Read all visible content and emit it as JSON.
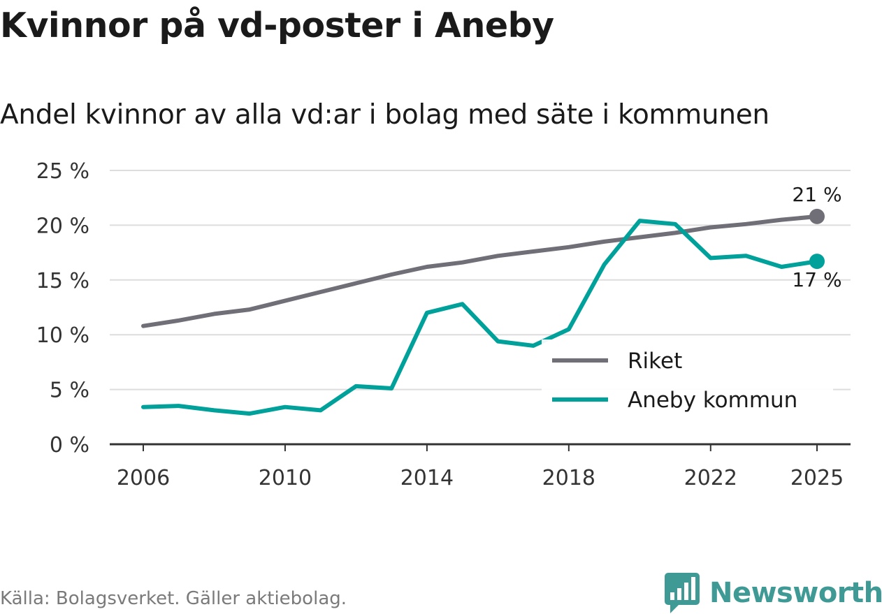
{
  "title": "Kvinnor på vd-poster i Aneby",
  "subtitle": "Andel kvinnor av alla vd:ar i bolag med säte i kommunen",
  "source": "Källa: Bolagsverket. Gäller aktiebolag.",
  "brand": "Newsworthy",
  "colors": {
    "riket": "#706f77",
    "aneby": "#00a19a",
    "grid": "#dddddd",
    "axis": "#333333",
    "brand": "#3f9a96"
  },
  "chart_data": {
    "type": "line",
    "x": [
      2006,
      2007,
      2008,
      2009,
      2010,
      2011,
      2012,
      2013,
      2014,
      2015,
      2016,
      2017,
      2018,
      2019,
      2020,
      2021,
      2022,
      2023,
      2024,
      2025
    ],
    "xticks": [
      2006,
      2010,
      2014,
      2018,
      2022,
      2025
    ],
    "xtick_labels": [
      "2006",
      "2010",
      "2014",
      "2018",
      "2022",
      "2025"
    ],
    "ylim": [
      0,
      25
    ],
    "yticks": [
      0,
      5,
      10,
      15,
      20,
      25
    ],
    "ytick_labels": [
      "0 %",
      "5 %",
      "10 %",
      "15 %",
      "20 %",
      "25 %"
    ],
    "series": [
      {
        "name": "Riket",
        "color": "#706f77",
        "values": [
          10.8,
          11.3,
          11.9,
          12.3,
          13.1,
          13.9,
          14.7,
          15.5,
          16.2,
          16.6,
          17.2,
          17.6,
          18.0,
          18.5,
          18.9,
          19.3,
          19.8,
          20.1,
          20.5,
          20.8
        ],
        "end_label": "21 %"
      },
      {
        "name": "Aneby kommun",
        "color": "#00a19a",
        "values": [
          3.4,
          3.5,
          3.1,
          2.8,
          3.4,
          3.1,
          5.3,
          5.1,
          12.0,
          12.8,
          9.4,
          9.0,
          10.5,
          16.4,
          20.4,
          20.1,
          17.0,
          17.2,
          16.2,
          16.7
        ],
        "end_label": "17 %"
      }
    ],
    "legend": {
      "position": "bottom-right",
      "entries": [
        "Riket",
        "Aneby kommun"
      ]
    },
    "grid": true,
    "xlabel": "",
    "ylabel": ""
  }
}
